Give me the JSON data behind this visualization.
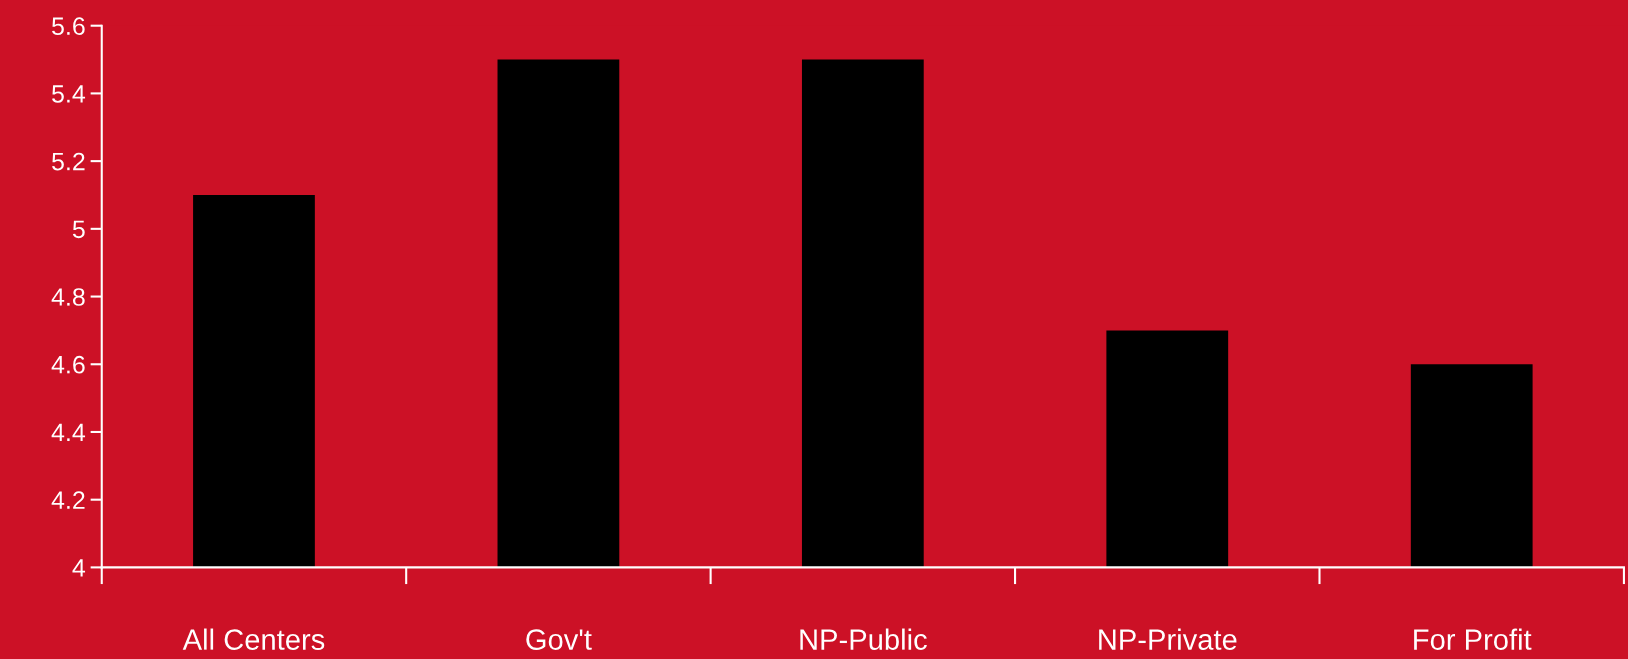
{
  "chart_data": {
    "type": "bar",
    "categories": [
      "All Centers",
      "Gov't",
      "NP-Public",
      "NP-Private",
      "For Profit"
    ],
    "values": [
      5.1,
      5.5,
      5.5,
      4.7,
      4.6
    ],
    "color": "#000000",
    "ylim": [
      4,
      5.6
    ],
    "yticks": [
      4,
      4.2,
      4.4,
      4.6,
      4.8,
      5,
      5.2,
      5.4,
      5.6
    ],
    "grid": false,
    "legend": false
  }
}
